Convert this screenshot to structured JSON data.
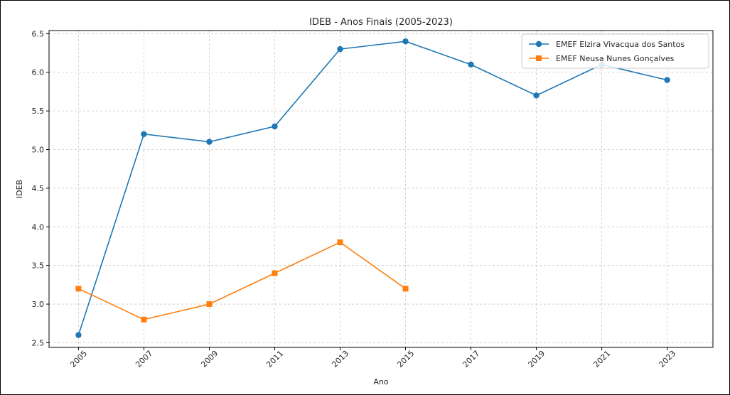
{
  "chart_data": {
    "type": "line",
    "title": "IDEB - Anos Finais (2005-2023)",
    "xlabel": "Ano",
    "ylabel": "IDEB",
    "x": [
      2005,
      2007,
      2009,
      2011,
      2013,
      2015,
      2017,
      2019,
      2021,
      2023
    ],
    "xtick_labels": [
      "2005",
      "2007",
      "2009",
      "2011",
      "2013",
      "2015",
      "2017",
      "2019",
      "2021",
      "2023"
    ],
    "yticks": [
      2.5,
      3.0,
      3.5,
      4.0,
      4.5,
      5.0,
      5.5,
      6.0,
      6.5
    ],
    "ytick_labels": [
      "2.5",
      "3.0",
      "3.5",
      "4.0",
      "4.5",
      "5.0",
      "5.5",
      "6.0",
      "6.5"
    ],
    "xlim": [
      2004.1,
      2024.4
    ],
    "ylim": [
      2.44,
      6.54
    ],
    "grid": true,
    "legend_position": "upper right",
    "series": [
      {
        "name": "EMEF Elzira Vivacqua dos Santos",
        "color": "#1f77b4",
        "marker": "circle",
        "x": [
          2005,
          2007,
          2009,
          2011,
          2013,
          2015,
          2017,
          2019,
          2021,
          2023
        ],
        "values": [
          2.6,
          5.2,
          5.1,
          5.3,
          6.3,
          6.4,
          6.1,
          5.7,
          6.1,
          5.9
        ]
      },
      {
        "name": "EMEF Neusa Nunes Gonçalves",
        "color": "#ff7f0e",
        "marker": "square",
        "x": [
          2005,
          2007,
          2009,
          2011,
          2013,
          2015
        ],
        "values": [
          3.2,
          2.8,
          3.0,
          3.4,
          3.8,
          3.2
        ]
      }
    ]
  }
}
